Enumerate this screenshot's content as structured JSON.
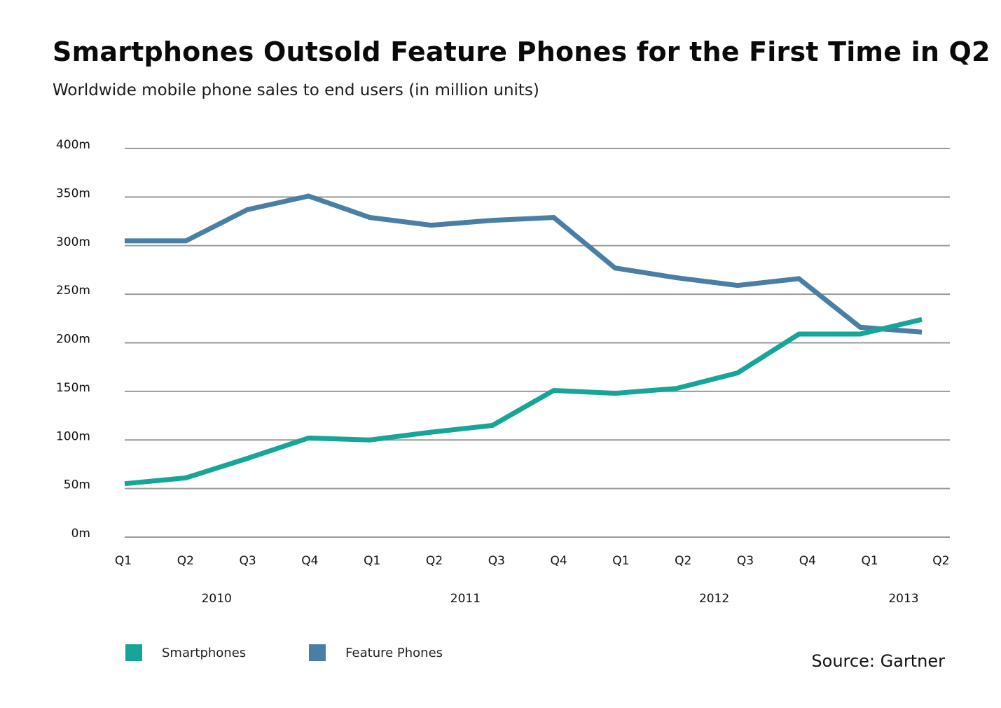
{
  "header": {
    "title": "Smartphones Outsold Feature Phones for the First Time in Q2",
    "subtitle": "Worldwide mobile phone sales to end users (in million units)"
  },
  "source": "Source: Gartner",
  "colors": {
    "smartphones": "#16a596",
    "feature_phones": "#4a7fa5",
    "gridline": "#9a9a9a"
  },
  "chart_data": {
    "type": "line",
    "title": "Smartphones Outsold Feature Phones for the First Time in Q2",
    "subtitle": "Worldwide mobile phone sales to end users (in million units)",
    "xlabel": "",
    "ylabel": "",
    "ylim": [
      0,
      400
    ],
    "yticks": [
      0,
      50,
      100,
      150,
      200,
      250,
      300,
      350,
      400
    ],
    "ytick_labels": [
      "0m",
      "50m",
      "100m",
      "150m",
      "200m",
      "250m",
      "300m",
      "350m",
      "400m"
    ],
    "grid": true,
    "categories": [
      "Q1",
      "Q2",
      "Q3",
      "Q4",
      "Q1",
      "Q2",
      "Q3",
      "Q4",
      "Q1",
      "Q2",
      "Q3",
      "Q4",
      "Q1",
      "Q2"
    ],
    "years": [
      {
        "label": "2010",
        "start": 0,
        "end": 3
      },
      {
        "label": "2011",
        "start": 4,
        "end": 7
      },
      {
        "label": "2012",
        "start": 8,
        "end": 11
      },
      {
        "label": "2013",
        "start": 12,
        "end": 13
      }
    ],
    "series": [
      {
        "name": "Smartphones",
        "color": "#16a596",
        "values": [
          55,
          61,
          81,
          102,
          100,
          108,
          115,
          151,
          148,
          153,
          169,
          209,
          209,
          224
        ]
      },
      {
        "name": "Feature Phones",
        "color": "#4a7fa5",
        "values": [
          305,
          305,
          337,
          351,
          329,
          321,
          326,
          329,
          277,
          267,
          259,
          266,
          216,
          211
        ]
      }
    ],
    "legend": {
      "placement": "bottom-left",
      "entries": [
        "Smartphones",
        "Feature Phones"
      ]
    },
    "source": "Source: Gartner"
  }
}
